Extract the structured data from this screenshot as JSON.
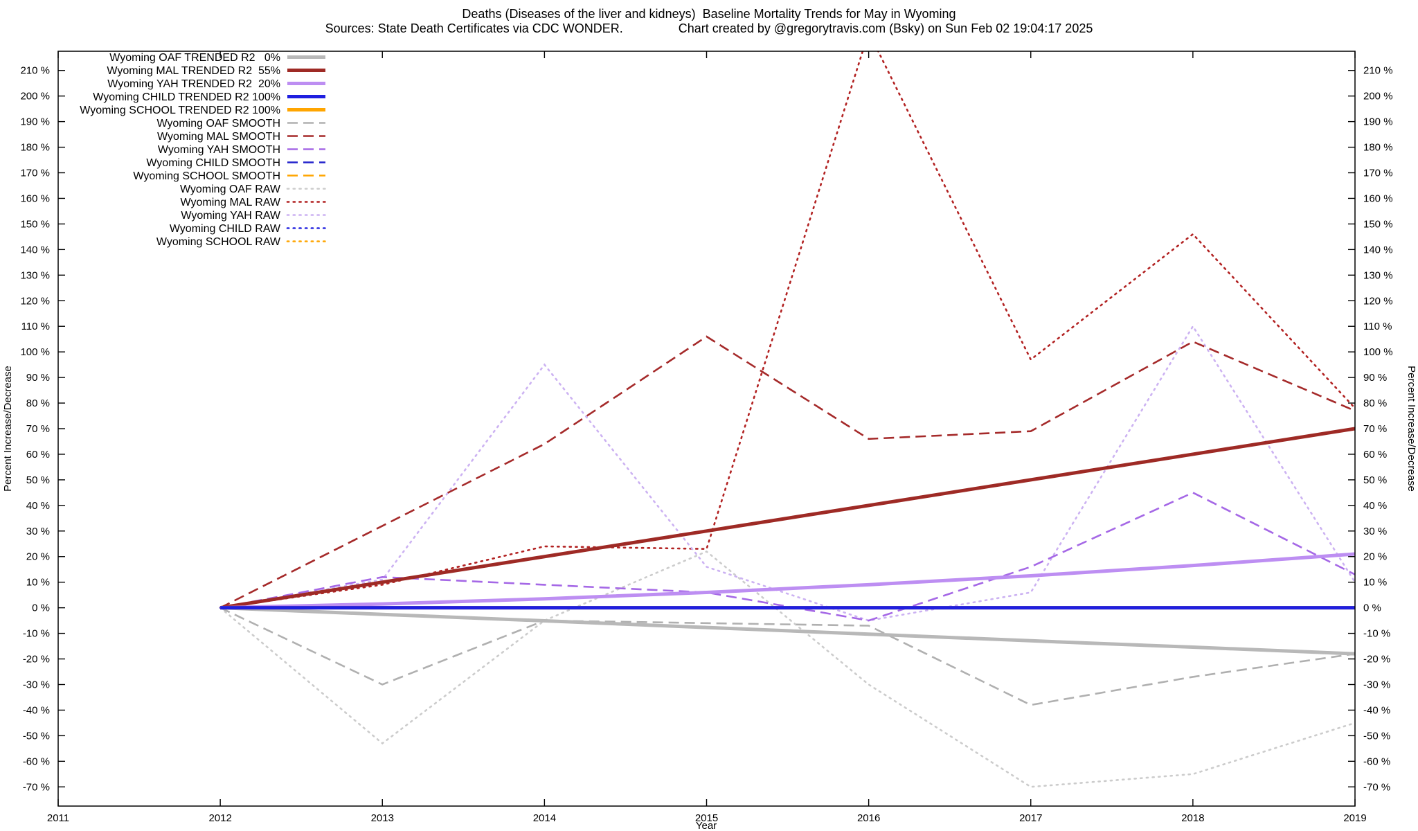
{
  "title": {
    "line1": "Deaths (Diseases of the liver and kidneys)  Baseline Mortality Trends for May in Wyoming",
    "line2": "Sources: State Death Certificates via CDC WONDER.                Chart created by @gregorytravis.com (Bsky) on Sun Feb 02 19:04:17 2025"
  },
  "axes": {
    "xlabel": "Year",
    "ylabel": "Percent Increase/Decrease"
  },
  "chart_data": {
    "type": "line",
    "x": [
      2012,
      2013,
      2014,
      2015,
      2016,
      2017,
      2018,
      2019
    ],
    "xlim": [
      2011,
      2019
    ],
    "ylim": [
      -77.5,
      217.5
    ],
    "xticks": [
      2011,
      2012,
      2013,
      2014,
      2015,
      2016,
      2017,
      2018,
      2019
    ],
    "yticks": [
      -70,
      -60,
      -50,
      -40,
      -30,
      -20,
      -10,
      0,
      10,
      20,
      30,
      40,
      50,
      60,
      70,
      80,
      90,
      100,
      110,
      120,
      130,
      140,
      150,
      160,
      170,
      180,
      190,
      200,
      210
    ],
    "ytick_suffix": " %",
    "grid": false,
    "legend_position": "top-left",
    "series": [
      {
        "id": "oaf-trended",
        "label": "Wyoming OAF TRENDED R2   0%",
        "color": "#b8b8b8",
        "style": "solid",
        "z": 31,
        "values": [
          0,
          -2.6,
          -5.1,
          -7.7,
          -10.3,
          -12.9,
          -15.4,
          -18
        ]
      },
      {
        "id": "mal-trended",
        "label": "Wyoming MAL TRENDED R2  55%",
        "color": "#9e2a25",
        "style": "solid",
        "z": 32,
        "values": [
          0,
          10,
          20,
          30,
          40,
          50,
          60,
          70
        ]
      },
      {
        "id": "yah-trended",
        "label": "Wyoming YAH TRENDED R2  20%",
        "color": "#bd8ef2",
        "style": "solid",
        "z": 33,
        "values": [
          0,
          1.5,
          3.5,
          6,
          9,
          12.5,
          16.5,
          21
        ]
      },
      {
        "id": "child-trended",
        "label": "Wyoming CHILD TRENDED R2 100%",
        "color": "#1f1fe0",
        "style": "solid",
        "z": 35,
        "values": [
          0,
          0,
          0,
          0,
          0,
          0,
          0,
          0
        ]
      },
      {
        "id": "school-trended",
        "label": "Wyoming SCHOOL TRENDED R2 100%",
        "color": "#ffa500",
        "style": "solid",
        "z": 34,
        "values": [
          0,
          0,
          0,
          0,
          0,
          0,
          0,
          0
        ]
      },
      {
        "id": "oaf-smooth",
        "label": "Wyoming OAF SMOOTH",
        "color": "#b0b0b0",
        "style": "dash",
        "z": 21,
        "values": [
          0,
          -30,
          -5,
          -6,
          -7,
          -38,
          -27,
          -18
        ]
      },
      {
        "id": "mal-smooth",
        "label": "Wyoming MAL SMOOTH",
        "color": "#a52a2a",
        "style": "dash",
        "z": 22,
        "values": [
          0,
          32,
          64,
          106,
          66,
          69,
          104,
          77
        ]
      },
      {
        "id": "yah-smooth",
        "label": "Wyoming YAH SMOOTH",
        "color": "#a568e6",
        "style": "dash",
        "z": 23,
        "values": [
          0,
          12,
          9,
          6,
          -5,
          16,
          45,
          13
        ]
      },
      {
        "id": "child-smooth",
        "label": "Wyoming CHILD SMOOTH",
        "color": "#2222cc",
        "style": "dash",
        "z": 25,
        "values": [
          0,
          0,
          0,
          0,
          0,
          0,
          0,
          0
        ]
      },
      {
        "id": "school-smooth",
        "label": "Wyoming SCHOOL SMOOTH",
        "color": "#ffa500",
        "style": "dash",
        "z": 24,
        "values": [
          0,
          0,
          0,
          0,
          0,
          0,
          0,
          0
        ]
      },
      {
        "id": "oaf-raw",
        "label": "Wyoming OAF RAW",
        "color": "#cccccc",
        "style": "dot",
        "z": 11,
        "values": [
          0,
          -53,
          -5,
          22,
          -30,
          -70,
          -65,
          -45
        ]
      },
      {
        "id": "mal-raw",
        "label": "Wyoming MAL RAW",
        "color": "#b22222",
        "style": "dot",
        "z": 12,
        "values": [
          0,
          9,
          24,
          23,
          225,
          97,
          146,
          78
        ]
      },
      {
        "id": "yah-raw",
        "label": "Wyoming YAH RAW",
        "color": "#ccb2f2",
        "style": "dot",
        "z": 13,
        "values": [
          0,
          11,
          95,
          16,
          -5,
          6,
          110,
          10
        ]
      },
      {
        "id": "child-raw",
        "label": "Wyoming CHILD RAW",
        "color": "#2a2ae0",
        "style": "dot",
        "z": 15,
        "values": [
          0,
          0,
          0,
          0,
          0,
          0,
          0,
          0
        ]
      },
      {
        "id": "school-raw",
        "label": "Wyoming SCHOOL RAW",
        "color": "#ffa500",
        "style": "dot",
        "z": 14,
        "values": [
          0,
          0,
          0,
          0,
          0,
          0,
          0,
          0
        ]
      }
    ]
  }
}
